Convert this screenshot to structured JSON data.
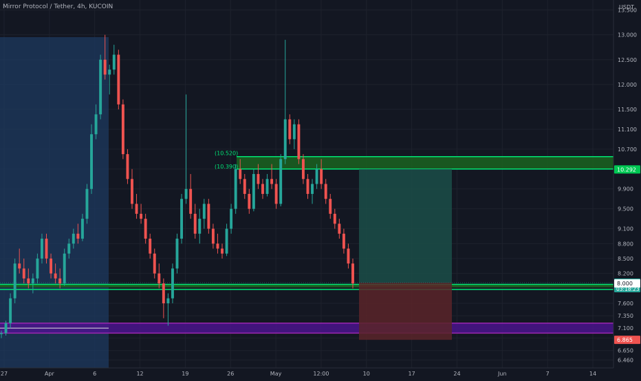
{
  "header": {
    "title": "Mirror Protocol / Tether, 4h, KUCOIN",
    "currency": "USDT"
  },
  "colors": {
    "background": "#131722",
    "grid": "#1e222d",
    "up_candle": "#26a69a",
    "down_candle": "#ef5350",
    "green_level": "#00e676",
    "purple_zone": "#9c27b0",
    "date_highlight": "#1e3a5f",
    "target_zone": "#1b4d48",
    "stop_zone": "#5b2429"
  },
  "chart_data": {
    "type": "candlestick",
    "y_axis": {
      "min": 6.3,
      "max": 13.7,
      "ticks": [
        "13.500",
        "13.000",
        "12.500",
        "12.000",
        "11.500",
        "11.100",
        "10.700",
        "10.300",
        "9.900",
        "9.500",
        "9.100",
        "8.800",
        "8.500",
        "8.200",
        "7.900",
        "7.600",
        "7.350",
        "7.100",
        "6.900",
        "6.650",
        "6.460"
      ]
    },
    "x_axis": {
      "labels": [
        "27",
        "Apr",
        "6",
        "12",
        "19",
        "26",
        "May",
        "12:00",
        "10",
        "17",
        "24",
        "Jun",
        "7",
        "14"
      ]
    },
    "price_labels": [
      {
        "value": "10.292",
        "price": 10.292,
        "color": "#00c853"
      },
      {
        "value": "8.015",
        "sub": "03:18:23",
        "price": 8.015,
        "color": "#26a69a"
      },
      {
        "value": "8.000",
        "price": 8.0,
        "color": "#ffffff"
      },
      {
        "value": "6.865",
        "price": 6.865,
        "color": "#ef5350"
      }
    ],
    "level_labels": [
      "(10.520)",
      "(10.390)"
    ],
    "levels": [
      {
        "name": "resistance",
        "top": 10.55,
        "bottom": 10.3
      },
      {
        "name": "support",
        "top": 7.98,
        "bottom": 7.92
      },
      {
        "name": "purple-zone",
        "top": 7.2,
        "bottom": 7.0
      }
    ],
    "candles": [
      [
        6.98,
        7.05,
        6.9,
        7.0
      ],
      [
        7.0,
        7.25,
        6.95,
        7.2
      ],
      [
        7.2,
        7.8,
        7.1,
        7.7
      ],
      [
        7.7,
        8.5,
        7.6,
        8.4
      ],
      [
        8.4,
        8.7,
        8.2,
        8.3
      ],
      [
        8.3,
        8.5,
        8.0,
        8.1
      ],
      [
        8.1,
        8.3,
        7.9,
        8.0
      ],
      [
        8.0,
        8.2,
        7.8,
        8.1
      ],
      [
        8.1,
        8.6,
        8.0,
        8.5
      ],
      [
        8.5,
        9.0,
        8.4,
        8.9
      ],
      [
        8.9,
        9.0,
        8.4,
        8.5
      ],
      [
        8.5,
        8.6,
        8.1,
        8.2
      ],
      [
        8.2,
        8.4,
        8.0,
        8.1
      ],
      [
        8.1,
        8.3,
        7.9,
        8.0
      ],
      [
        8.0,
        8.7,
        7.95,
        8.6
      ],
      [
        8.6,
        8.9,
        8.5,
        8.8
      ],
      [
        8.8,
        9.1,
        8.7,
        9.0
      ],
      [
        9.0,
        9.2,
        8.8,
        8.9
      ],
      [
        8.9,
        9.4,
        8.85,
        9.3
      ],
      [
        9.3,
        10.0,
        9.2,
        9.9
      ],
      [
        9.9,
        11.2,
        9.8,
        11.0
      ],
      [
        11.0,
        11.6,
        10.9,
        11.4
      ],
      [
        11.4,
        12.6,
        11.3,
        12.5
      ],
      [
        12.5,
        13.0,
        12.1,
        12.2
      ],
      [
        12.2,
        12.4,
        11.8,
        12.3
      ],
      [
        12.3,
        12.8,
        12.2,
        12.6
      ],
      [
        12.6,
        12.7,
        11.5,
        11.6
      ],
      [
        11.6,
        11.7,
        10.5,
        10.6
      ],
      [
        10.6,
        10.7,
        10.0,
        10.1
      ],
      [
        10.1,
        10.3,
        9.5,
        9.6
      ],
      [
        9.6,
        9.8,
        9.3,
        9.4
      ],
      [
        9.4,
        9.6,
        9.2,
        9.3
      ],
      [
        9.3,
        9.4,
        8.8,
        8.9
      ],
      [
        8.9,
        9.0,
        8.5,
        8.6
      ],
      [
        8.6,
        8.7,
        8.1,
        8.2
      ],
      [
        8.2,
        8.4,
        7.9,
        8.0
      ],
      [
        8.0,
        8.1,
        7.3,
        7.6
      ],
      [
        7.6,
        7.8,
        7.15,
        7.7
      ],
      [
        7.7,
        8.4,
        7.6,
        8.3
      ],
      [
        8.3,
        9.0,
        8.2,
        8.9
      ],
      [
        8.9,
        9.8,
        8.8,
        9.7
      ],
      [
        9.7,
        11.8,
        9.6,
        9.9
      ],
      [
        9.9,
        10.2,
        9.3,
        9.4
      ],
      [
        9.4,
        9.6,
        8.9,
        9.0
      ],
      [
        9.0,
        9.5,
        8.8,
        9.3
      ],
      [
        9.3,
        9.7,
        9.1,
        9.6
      ],
      [
        9.6,
        9.7,
        9.0,
        9.1
      ],
      [
        9.1,
        9.2,
        8.7,
        8.8
      ],
      [
        8.8,
        9.0,
        8.6,
        8.7
      ],
      [
        8.7,
        8.8,
        8.5,
        8.6
      ],
      [
        8.6,
        9.2,
        8.55,
        9.1
      ],
      [
        9.1,
        9.6,
        9.0,
        9.5
      ],
      [
        9.5,
        10.4,
        9.4,
        10.3
      ],
      [
        10.3,
        10.5,
        10.0,
        10.1
      ],
      [
        10.1,
        10.2,
        9.7,
        9.8
      ],
      [
        9.8,
        9.9,
        9.4,
        9.5
      ],
      [
        9.5,
        10.3,
        9.45,
        10.2
      ],
      [
        10.2,
        10.4,
        9.9,
        10.0
      ],
      [
        10.0,
        10.1,
        9.7,
        9.8
      ],
      [
        9.8,
        10.2,
        9.75,
        10.1
      ],
      [
        10.1,
        10.4,
        9.9,
        10.0
      ],
      [
        10.0,
        10.1,
        9.5,
        9.6
      ],
      [
        9.6,
        10.6,
        9.55,
        10.5
      ],
      [
        10.5,
        12.9,
        10.4,
        11.3
      ],
      [
        11.3,
        11.4,
        10.8,
        10.9
      ],
      [
        10.9,
        11.3,
        10.7,
        11.2
      ],
      [
        11.2,
        11.3,
        10.4,
        10.5
      ],
      [
        10.5,
        10.6,
        10.0,
        10.1
      ],
      [
        10.1,
        10.2,
        9.7,
        9.8
      ],
      [
        9.8,
        10.1,
        9.6,
        10.0
      ],
      [
        10.0,
        10.4,
        9.9,
        10.3
      ],
      [
        10.3,
        10.5,
        9.9,
        10.0
      ],
      [
        10.0,
        10.1,
        9.6,
        9.7
      ],
      [
        9.7,
        9.8,
        9.3,
        9.4
      ],
      [
        9.4,
        9.5,
        9.1,
        9.2
      ],
      [
        9.2,
        9.3,
        8.9,
        9.0
      ],
      [
        9.0,
        9.1,
        8.6,
        8.7
      ],
      [
        8.7,
        8.8,
        8.3,
        8.4
      ],
      [
        8.4,
        8.5,
        7.9,
        8.0
      ]
    ]
  },
  "position": {
    "entry": 8.015,
    "target": 10.3,
    "stop": 6.865
  }
}
